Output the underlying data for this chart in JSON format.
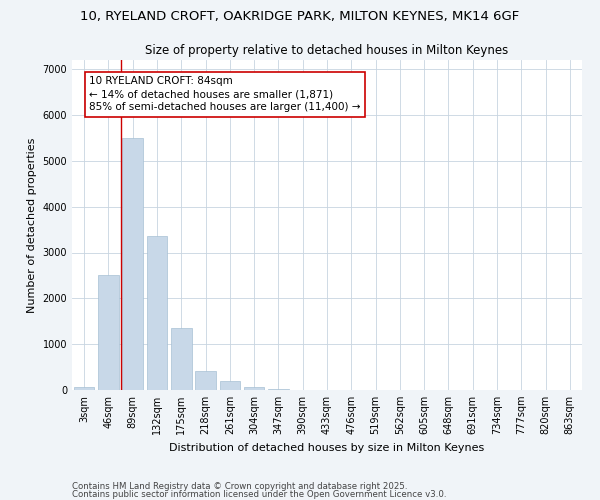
{
  "title_line1": "10, RYELAND CROFT, OAKRIDGE PARK, MILTON KEYNES, MK14 6GF",
  "title_line2": "Size of property relative to detached houses in Milton Keynes",
  "xlabel": "Distribution of detached houses by size in Milton Keynes",
  "ylabel": "Number of detached properties",
  "categories": [
    "3sqm",
    "46sqm",
    "89sqm",
    "132sqm",
    "175sqm",
    "218sqm",
    "261sqm",
    "304sqm",
    "347sqm",
    "390sqm",
    "433sqm",
    "476sqm",
    "519sqm",
    "562sqm",
    "605sqm",
    "648sqm",
    "691sqm",
    "734sqm",
    "777sqm",
    "820sqm",
    "863sqm"
  ],
  "bar_values": [
    70,
    2500,
    5500,
    3350,
    1350,
    420,
    200,
    75,
    30,
    5,
    2,
    0,
    0,
    0,
    0,
    0,
    0,
    0,
    0,
    0,
    0
  ],
  "bar_color": "#c8d8e8",
  "bar_edge_color": "#a8c0d4",
  "vline_x_index": 1.5,
  "annotation_text": "10 RYELAND CROFT: 84sqm\n← 14% of detached houses are smaller (1,871)\n85% of semi-detached houses are larger (11,400) →",
  "vline_color": "#cc0000",
  "annotation_box_edgecolor": "#cc0000",
  "annotation_box_facecolor": "#ffffff",
  "ylim": [
    0,
    7200
  ],
  "yticks": [
    0,
    1000,
    2000,
    3000,
    4000,
    5000,
    6000,
    7000
  ],
  "footer_line1": "Contains HM Land Registry data © Crown copyright and database right 2025.",
  "footer_line2": "Contains public sector information licensed under the Open Government Licence v3.0.",
  "bg_color": "#f0f4f8",
  "plot_bg_color": "#ffffff",
  "grid_color": "#c8d4e0",
  "title_fontsize": 9.5,
  "subtitle_fontsize": 8.5,
  "axis_label_fontsize": 8,
  "tick_fontsize": 7,
  "annotation_fontsize": 7.5,
  "footer_fontsize": 6.2
}
